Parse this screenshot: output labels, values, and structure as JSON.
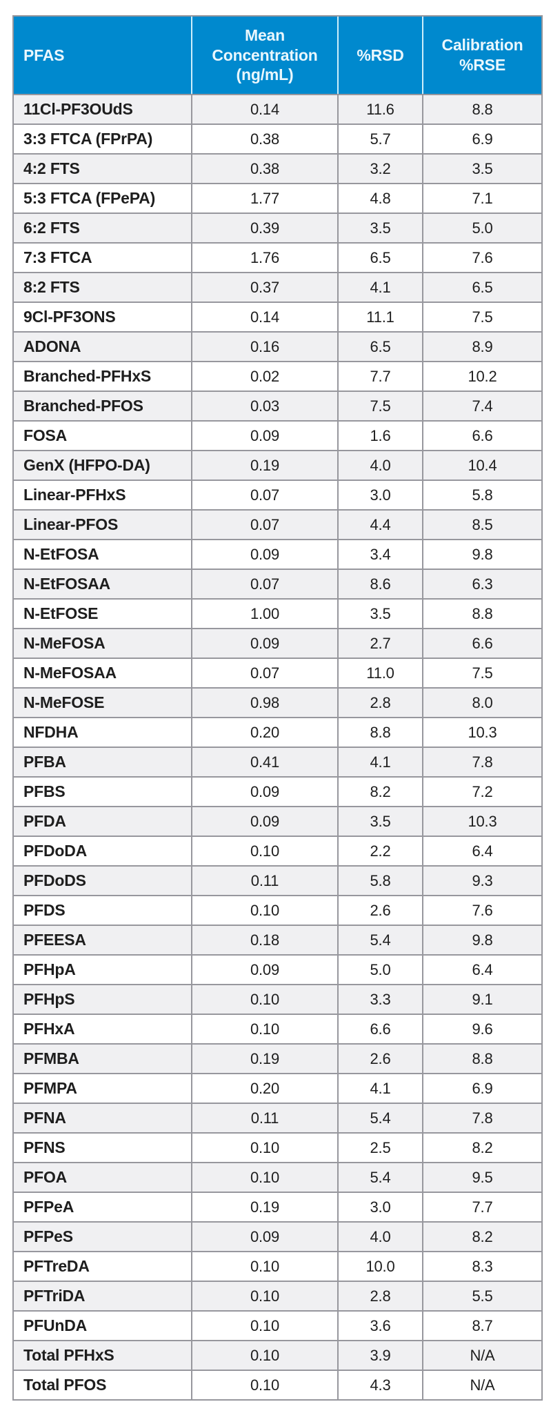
{
  "table": {
    "columns": [
      "PFAS",
      "Mean Concentration (ng/mL)",
      "%RSD",
      "Calibration %RSE"
    ],
    "rows": [
      [
        "11Cl-PF3OUdS",
        "0.14",
        "11.6",
        "8.8"
      ],
      [
        "3:3 FTCA (FPrPA)",
        "0.38",
        "5.7",
        "6.9"
      ],
      [
        "4:2 FTS",
        "0.38",
        "3.2",
        "3.5"
      ],
      [
        "5:3 FTCA (FPePA)",
        "1.77",
        "4.8",
        "7.1"
      ],
      [
        "6:2 FTS",
        "0.39",
        "3.5",
        "5.0"
      ],
      [
        "7:3 FTCA",
        "1.76",
        "6.5",
        "7.6"
      ],
      [
        "8:2 FTS",
        "0.37",
        "4.1",
        "6.5"
      ],
      [
        "9Cl-PF3ONS",
        "0.14",
        "11.1",
        "7.5"
      ],
      [
        "ADONA",
        "0.16",
        "6.5",
        "8.9"
      ],
      [
        "Branched-PFHxS",
        "0.02",
        "7.7",
        "10.2"
      ],
      [
        "Branched-PFOS",
        "0.03",
        "7.5",
        "7.4"
      ],
      [
        "FOSA",
        "0.09",
        "1.6",
        "6.6"
      ],
      [
        "GenX (HFPO-DA)",
        "0.19",
        "4.0",
        "10.4"
      ],
      [
        "Linear-PFHxS",
        "0.07",
        "3.0",
        "5.8"
      ],
      [
        "Linear-PFOS",
        "0.07",
        "4.4",
        "8.5"
      ],
      [
        "N-EtFOSA",
        "0.09",
        "3.4",
        "9.8"
      ],
      [
        "N-EtFOSAA",
        "0.07",
        "8.6",
        "6.3"
      ],
      [
        "N-EtFOSE",
        "1.00",
        "3.5",
        "8.8"
      ],
      [
        "N-MeFOSA",
        "0.09",
        "2.7",
        "6.6"
      ],
      [
        "N-MeFOSAA",
        "0.07",
        "11.0",
        "7.5"
      ],
      [
        "N-MeFOSE",
        "0.98",
        "2.8",
        "8.0"
      ],
      [
        "NFDHA",
        "0.20",
        "8.8",
        "10.3"
      ],
      [
        "PFBA",
        "0.41",
        "4.1",
        "7.8"
      ],
      [
        "PFBS",
        "0.09",
        "8.2",
        "7.2"
      ],
      [
        "PFDA",
        "0.09",
        "3.5",
        "10.3"
      ],
      [
        "PFDoDA",
        "0.10",
        "2.2",
        "6.4"
      ],
      [
        "PFDoDS",
        "0.11",
        "5.8",
        "9.3"
      ],
      [
        "PFDS",
        "0.10",
        "2.6",
        "7.6"
      ],
      [
        "PFEESA",
        "0.18",
        "5.4",
        "9.8"
      ],
      [
        "PFHpA",
        "0.09",
        "5.0",
        "6.4"
      ],
      [
        "PFHpS",
        "0.10",
        "3.3",
        "9.1"
      ],
      [
        "PFHxA",
        "0.10",
        "6.6",
        "9.6"
      ],
      [
        "PFMBA",
        "0.19",
        "2.6",
        "8.8"
      ],
      [
        "PFMPA",
        "0.20",
        "4.1",
        "6.9"
      ],
      [
        "PFNA",
        "0.11",
        "5.4",
        "7.8"
      ],
      [
        "PFNS",
        "0.10",
        "2.5",
        "8.2"
      ],
      [
        "PFOA",
        "0.10",
        "5.4",
        "9.5"
      ],
      [
        "PFPeA",
        "0.19",
        "3.0",
        "7.7"
      ],
      [
        "PFPeS",
        "0.09",
        "4.0",
        "8.2"
      ],
      [
        "PFTreDA",
        "0.10",
        "10.0",
        "8.3"
      ],
      [
        "PFTriDA",
        "0.10",
        "2.8",
        "5.5"
      ],
      [
        "PFUnDA",
        "0.10",
        "3.6",
        "8.7"
      ],
      [
        "Total PFHxS",
        "0.10",
        "3.9",
        "N/A"
      ],
      [
        "Total PFOS",
        "0.10",
        "4.3",
        "N/A"
      ]
    ]
  },
  "colors": {
    "header_bg": "#0089CE",
    "header_text": "#EAF7FD",
    "header_divider": "#CFEFFB",
    "cell_border": "#97979D",
    "row_alt_bg": "#F0F0F2",
    "row_bg": "#FFFFFF",
    "body_text": "#1E1E1E"
  }
}
